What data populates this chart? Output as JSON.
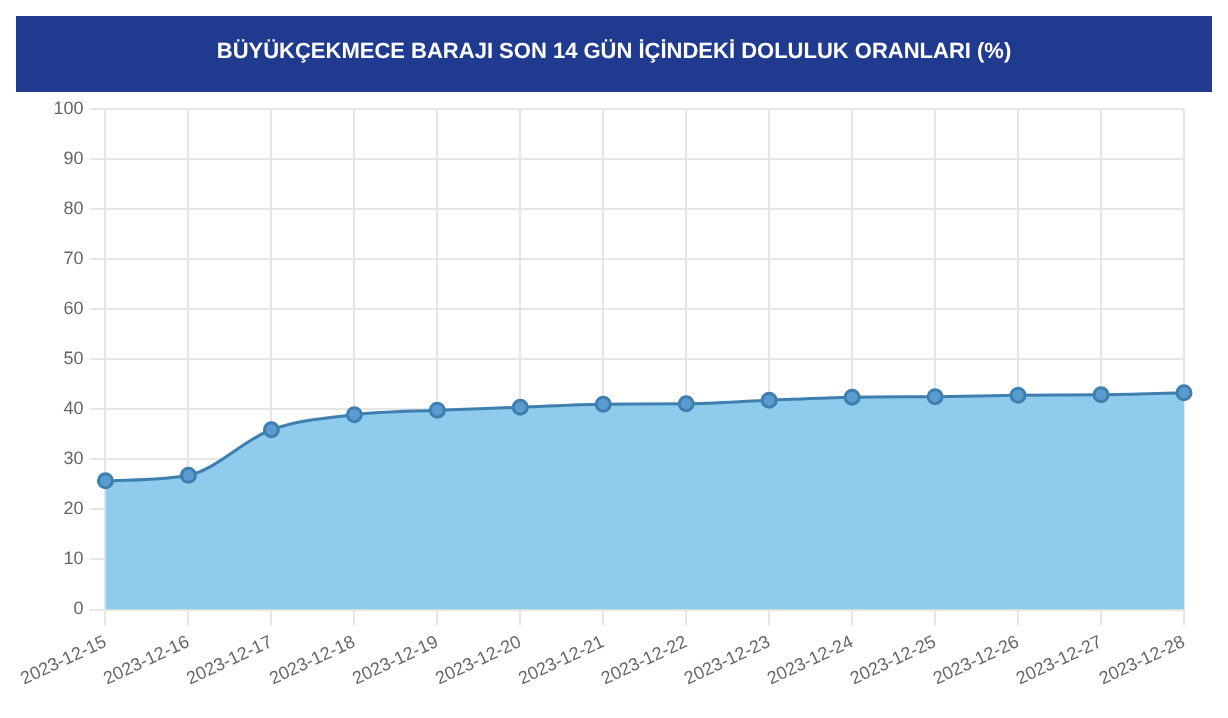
{
  "chart_data": {
    "type": "area",
    "title": "BÜYÜKÇEKMECE BARAJI SON 14 GÜN İÇİNDEKİ DOLULUK ORANLARI (%)",
    "categories": [
      "2023-12-15",
      "2023-12-16",
      "2023-12-17",
      "2023-12-18",
      "2023-12-19",
      "2023-12-20",
      "2023-12-21",
      "2023-12-22",
      "2023-12-23",
      "2023-12-24",
      "2023-12-25",
      "2023-12-26",
      "2023-12-27",
      "2023-12-28"
    ],
    "series": [
      {
        "color": "#3f7fb0",
        "values": [
          25.7,
          26.8,
          35.9,
          38.9,
          39.8,
          40.4,
          41.0,
          41.1,
          41.8,
          42.4,
          42.5,
          42.8,
          42.9,
          43.3
        ]
      }
    ],
    "ylim": [
      0,
      100
    ],
    "yticks": [
      0,
      10,
      20,
      30,
      40,
      50,
      60,
      70,
      80,
      90,
      100
    ],
    "grid": true,
    "marker": "circle"
  }
}
